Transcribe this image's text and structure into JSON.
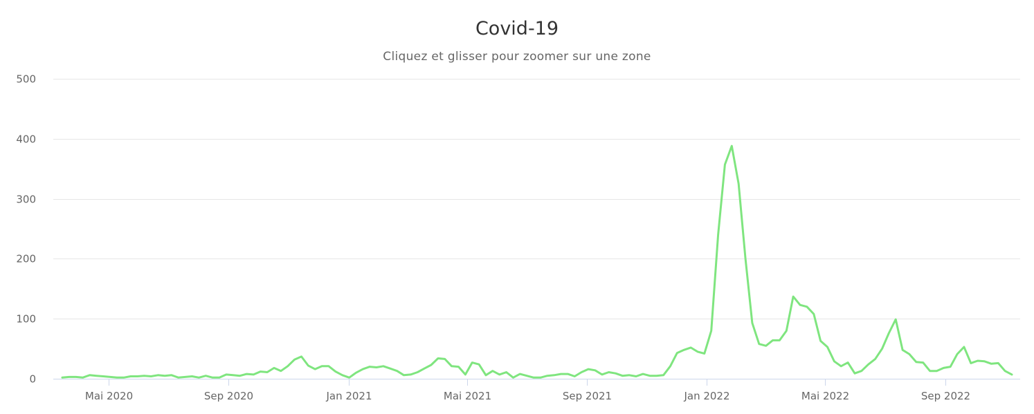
{
  "chart": {
    "title": "Covid-19",
    "subtitle": "Cliquez et glisser pour zoomer sur une zone"
  },
  "colors": {
    "series": "#7fe57f",
    "grid": "#e6e6e6",
    "axis": "#ccd6eb",
    "label": "#666666",
    "title": "#333333"
  },
  "chart_data": {
    "type": "line",
    "title": "Covid-19",
    "subtitle": "Cliquez et glisser pour zoomer sur une zone",
    "xlabel": "",
    "ylabel": "",
    "ylim": [
      0,
      500
    ],
    "yticks": [
      0,
      100,
      200,
      300,
      400,
      500
    ],
    "xticks": [
      "Mai 2020",
      "Sep 2020",
      "Jan 2021",
      "Mai 2021",
      "Sep 2021",
      "Jan 2022",
      "Mai 2022",
      "Sep 2022"
    ],
    "grid": true,
    "legend": "none",
    "x_start": "2020-03 (weekly)",
    "series": [
      {
        "name": "Covid-19",
        "values": [
          2,
          3,
          3,
          2,
          6,
          5,
          4,
          3,
          2,
          2,
          4,
          4,
          5,
          4,
          6,
          5,
          6,
          2,
          3,
          4,
          2,
          5,
          2,
          2,
          7,
          6,
          5,
          8,
          7,
          12,
          11,
          18,
          13,
          21,
          32,
          37,
          22,
          16,
          21,
          21,
          12,
          6,
          2,
          10,
          16,
          20,
          19,
          21,
          17,
          13,
          6,
          7,
          11,
          17,
          23,
          34,
          33,
          21,
          20,
          7,
          27,
          24,
          6,
          13,
          7,
          11,
          2,
          8,
          5,
          2,
          2,
          5,
          6,
          8,
          8,
          4,
          11,
          16,
          14,
          7,
          11,
          9,
          5,
          6,
          4,
          8,
          5,
          5,
          6,
          21,
          43,
          48,
          52,
          45,
          42,
          80,
          240,
          357,
          388,
          325,
          200,
          93,
          58,
          55,
          64,
          64,
          80,
          137,
          123,
          120,
          108,
          63,
          53,
          29,
          21,
          27,
          9,
          13,
          24,
          33,
          50,
          76,
          99,
          48,
          41,
          28,
          27,
          13,
          13,
          18,
          20,
          41,
          53,
          26,
          30,
          29,
          25,
          26,
          13,
          7
        ]
      }
    ]
  }
}
